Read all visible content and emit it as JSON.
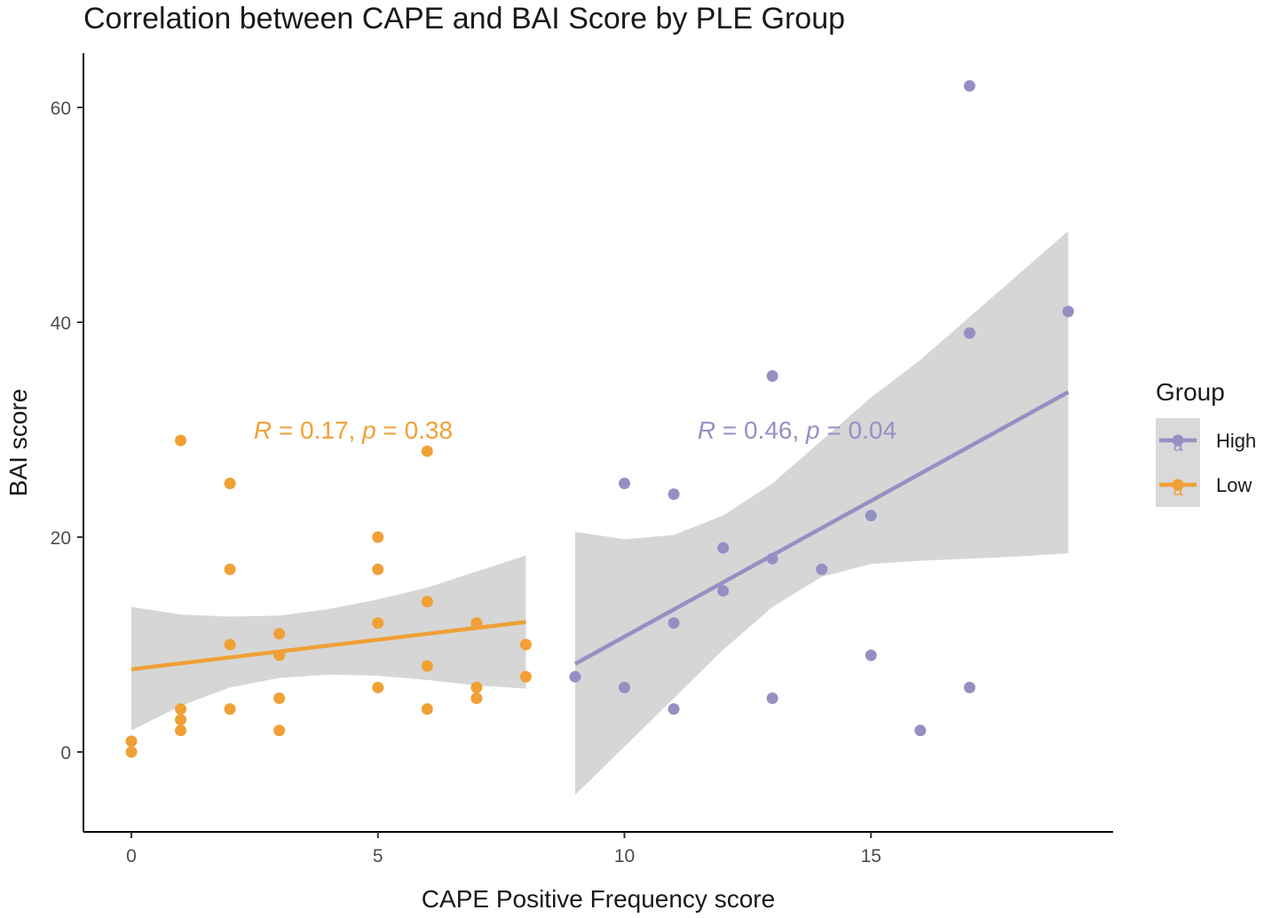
{
  "chart_data": {
    "type": "scatter",
    "title": "Correlation between CAPE and BAI Score by PLE Group",
    "xlabel": "CAPE Positive Frequency score",
    "ylabel": "BAI score",
    "xlim": [
      -1,
      19.9
    ],
    "ylim": [
      -7.5,
      65
    ],
    "x_ticks": [
      "0",
      "5",
      "10",
      "15"
    ],
    "y_ticks": [
      "0",
      "20",
      "40",
      "60"
    ],
    "grid": false,
    "legend": {
      "title": "Group",
      "position": "right"
    },
    "series": [
      {
        "name": "High",
        "color": "#9590c4",
        "points": [
          [
            9,
            7
          ],
          [
            10,
            25
          ],
          [
            10,
            6
          ],
          [
            11,
            24
          ],
          [
            11,
            12
          ],
          [
            11,
            4
          ],
          [
            12,
            19
          ],
          [
            12,
            15
          ],
          [
            13,
            35
          ],
          [
            13,
            18
          ],
          [
            13,
            5
          ],
          [
            14,
            17
          ],
          [
            15,
            22
          ],
          [
            15,
            9
          ],
          [
            16,
            2
          ],
          [
            17,
            62
          ],
          [
            17,
            39
          ],
          [
            17,
            6
          ],
          [
            19,
            41
          ]
        ],
        "fit": {
          "x": [
            9,
            19
          ],
          "y": [
            8.2,
            33.5
          ]
        },
        "ci": {
          "x": [
            9,
            10,
            11,
            12,
            13,
            14,
            15,
            16,
            17,
            18,
            19
          ],
          "lower": [
            -4,
            0.5,
            5,
            9.5,
            13.5,
            16.3,
            17.5,
            17.8,
            18.0,
            18.2,
            18.5
          ],
          "upper": [
            20.5,
            19.8,
            20.2,
            22,
            25,
            29,
            33,
            36.5,
            40.5,
            44.5,
            48.5
          ]
        },
        "annotation": {
          "r": "0.46",
          "p": "0.04",
          "x": 13.5,
          "y": 30
        }
      },
      {
        "name": "Low",
        "color": "#f0a035",
        "points": [
          [
            0,
            1
          ],
          [
            0,
            0
          ],
          [
            1,
            29
          ],
          [
            1,
            4
          ],
          [
            1,
            3
          ],
          [
            1,
            2
          ],
          [
            2,
            25
          ],
          [
            2,
            17
          ],
          [
            2,
            10
          ],
          [
            2,
            4
          ],
          [
            3,
            11
          ],
          [
            3,
            9
          ],
          [
            3,
            5
          ],
          [
            3,
            2
          ],
          [
            5,
            20
          ],
          [
            5,
            17
          ],
          [
            5,
            12
          ],
          [
            5,
            6
          ],
          [
            6,
            28
          ],
          [
            6,
            14
          ],
          [
            6,
            8
          ],
          [
            6,
            4
          ],
          [
            7,
            12
          ],
          [
            7,
            6
          ],
          [
            7,
            5
          ],
          [
            8,
            10
          ],
          [
            8,
            7
          ]
        ],
        "fit": {
          "x": [
            0,
            8
          ],
          "y": [
            7.7,
            12.1
          ]
        },
        "ci": {
          "x": [
            0,
            1,
            2,
            3,
            4,
            5,
            6,
            7,
            8
          ],
          "lower": [
            2,
            4.3,
            6,
            6.9,
            7.2,
            7.1,
            6.7,
            6.2,
            5.9
          ],
          "upper": [
            13.5,
            12.8,
            12.6,
            12.7,
            13.3,
            14.2,
            15.3,
            16.8,
            18.3
          ]
        },
        "annotation": {
          "r": "0.17",
          "p": "0.38",
          "x": 4.5,
          "y": 30
        }
      }
    ],
    "annotation_text": {
      "r_symbol": "R",
      "p_symbol": "p",
      "eq": " = ",
      "sep": ", "
    },
    "legend_key_glyph": "a"
  }
}
